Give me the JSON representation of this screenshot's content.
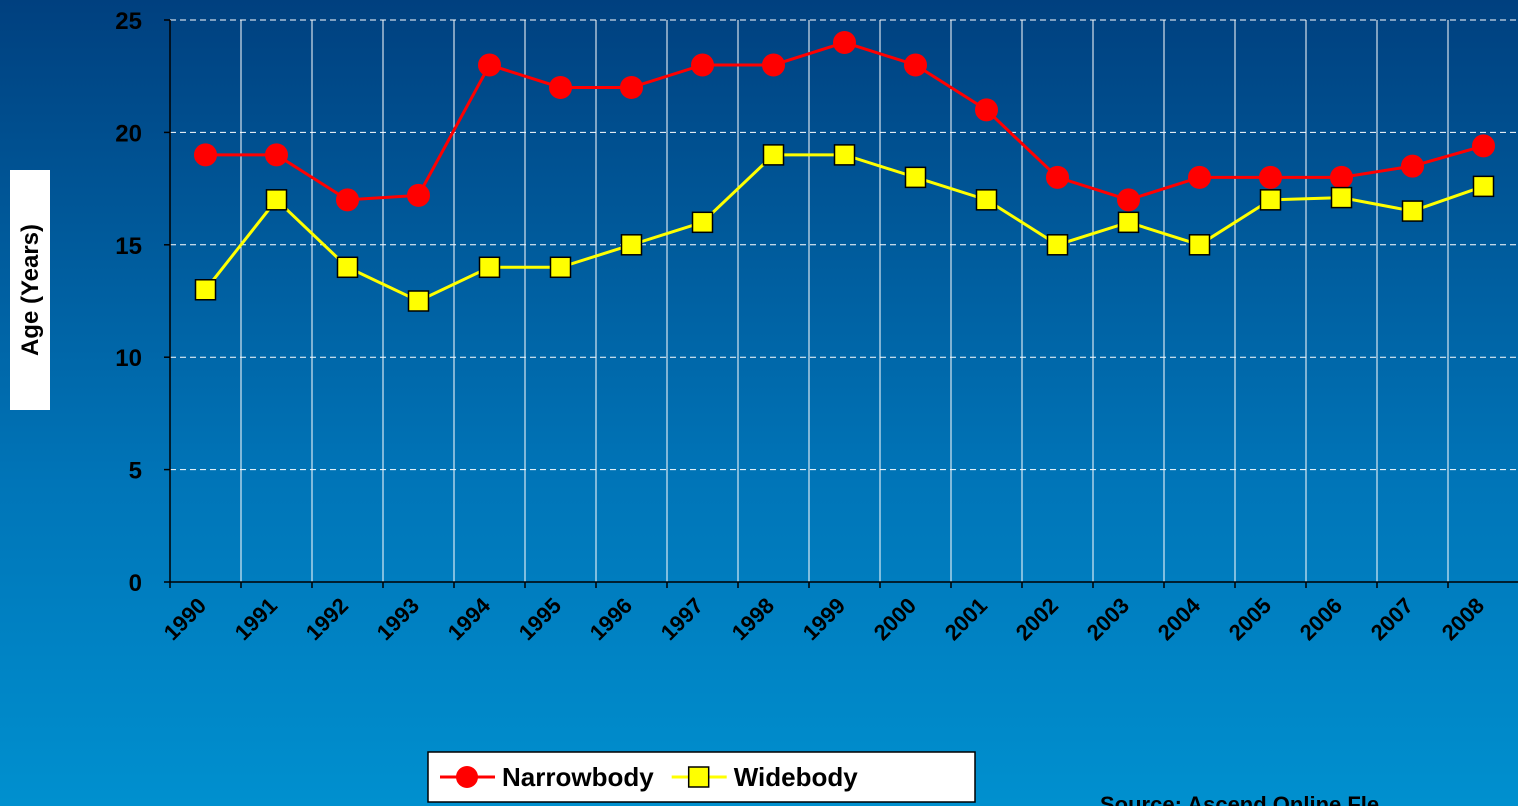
{
  "chart_data": {
    "type": "line",
    "y_label": "Age (Years)",
    "source": "Source: Ascend Online Fle",
    "categories": [
      "1990",
      "1991",
      "1992",
      "1993",
      "1994",
      "1995",
      "1996",
      "1997",
      "1998",
      "1999",
      "2000",
      "2001",
      "2002",
      "2003",
      "2004",
      "2005",
      "2006",
      "2007",
      "2008"
    ],
    "series": [
      {
        "name": "Narrowbody",
        "color": "#ff0000",
        "marker": "circle",
        "values": [
          19,
          19,
          17,
          17.2,
          23,
          22,
          22,
          23,
          23,
          24,
          23,
          21,
          18,
          17,
          18,
          18,
          18,
          18.5,
          19.4
        ]
      },
      {
        "name": "Widebody",
        "color": "#ffff00",
        "marker": "square",
        "values": [
          13,
          17,
          14,
          12.5,
          14,
          14,
          15,
          16,
          19,
          19,
          18,
          17,
          15,
          16,
          15,
          17,
          17.1,
          16.5,
          17.6
        ]
      }
    ],
    "ylim": [
      0,
      25
    ],
    "yticks": [
      0,
      5,
      10,
      15,
      20,
      25
    ],
    "grid": true,
    "legend": "bottom"
  }
}
